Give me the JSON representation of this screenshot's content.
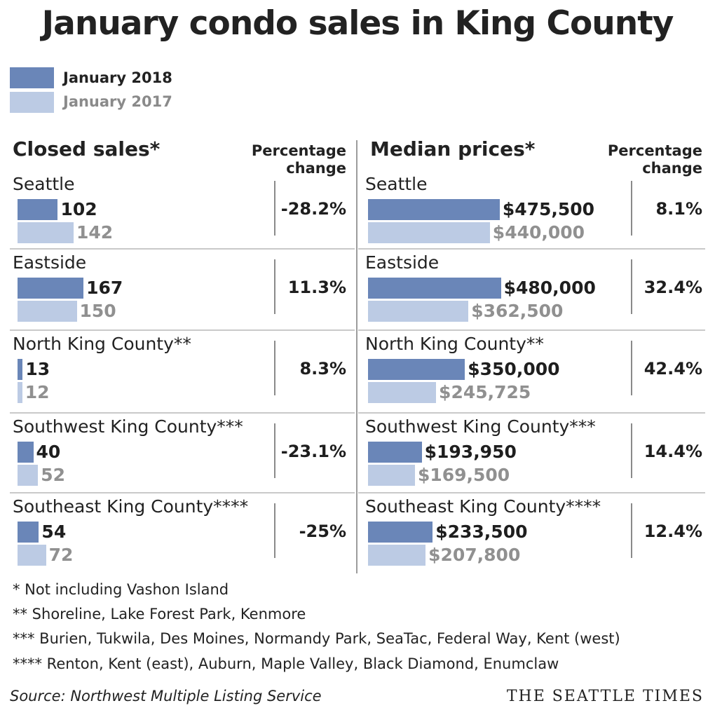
{
  "title": "January condo sales in King County",
  "legend": [
    {
      "label": "January 2018",
      "color": "#6a86b8",
      "text_color": "#222222"
    },
    {
      "label": "January 2017",
      "color": "#bccbe4",
      "text_color": "#8a8a8a"
    }
  ],
  "chart_data": [
    {
      "type": "bar",
      "title": "Closed sales*",
      "pct_header": "Percentage change",
      "categories": [
        "Seattle",
        "Eastside",
        "North King County**",
        "Southwest King County***",
        "Southeast King County****"
      ],
      "series": [
        {
          "name": "January 2018",
          "values": [
            102,
            167,
            13,
            40,
            54
          ]
        },
        {
          "name": "January 2017",
          "values": [
            142,
            150,
            12,
            52,
            72
          ]
        }
      ],
      "value_labels": {
        "January 2018": [
          "102",
          "167",
          "13",
          "40",
          "54"
        ],
        "January 2017": [
          "142",
          "150",
          "12",
          "52",
          "72"
        ]
      },
      "percentage_change": [
        "-28.2%",
        "11.3%",
        "8.3%",
        "-23.1%",
        "-25%"
      ]
    },
    {
      "type": "bar",
      "title": "Median prices*",
      "pct_header": "Percentage change",
      "categories": [
        "Seattle",
        "Eastside",
        "North King County**",
        "Southwest King County***",
        "Southeast King County****"
      ],
      "series": [
        {
          "name": "January 2018",
          "values": [
            475500,
            480000,
            350000,
            193950,
            233500
          ]
        },
        {
          "name": "January 2017",
          "values": [
            440000,
            362500,
            245725,
            169500,
            207800
          ]
        }
      ],
      "value_labels": {
        "January 2018": [
          "$475,500",
          "$480,000",
          "$350,000",
          "$193,950",
          "$233,500"
        ],
        "January 2017": [
          "$440,000",
          "$362,500",
          "$245,725",
          "$169,500",
          "$207,800"
        ]
      },
      "percentage_change": [
        "8.1%",
        "32.4%",
        "42.4%",
        "14.4%",
        "12.4%"
      ]
    }
  ],
  "footnotes": [
    "* Not including Vashon Island",
    "**  Shoreline, Lake Forest Park, Kenmore",
    "*** Burien, Tukwila, Des Moines, Normandy Park, SeaTac, Federal Way, Kent (west)",
    "**** Renton, Kent (east), Auburn, Maple Valley, Black Diamond, Enumclaw"
  ],
  "source": "Source: Northwest Multiple Listing Service",
  "brand": "THE SEATTLE TIMES"
}
